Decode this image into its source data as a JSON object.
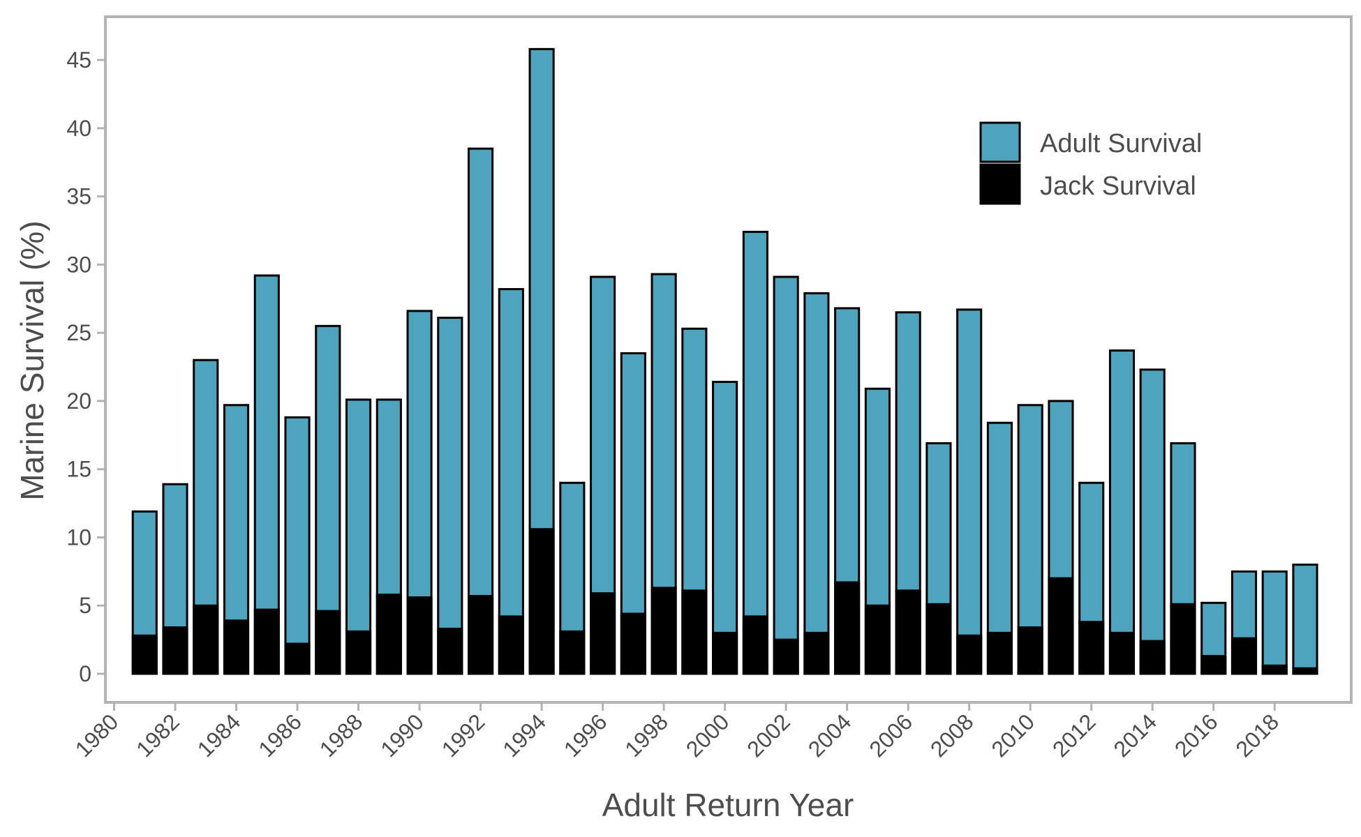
{
  "chart_data": {
    "type": "bar",
    "stacked": false,
    "overlay": true,
    "xlabel": "Adult Return Year",
    "ylabel": "Marine Survival (%)",
    "xlim": [
      1980,
      2020
    ],
    "ylim": [
      -2.5,
      48
    ],
    "x_ticks": [
      1980,
      1982,
      1984,
      1986,
      1988,
      1990,
      1992,
      1994,
      1996,
      1998,
      2000,
      2002,
      2004,
      2006,
      2008,
      2010,
      2012,
      2014,
      2016,
      2018
    ],
    "y_ticks": [
      0,
      5,
      10,
      15,
      20,
      25,
      30,
      35,
      40,
      45
    ],
    "grid": false,
    "legend_position": "top-right",
    "x": [
      1981,
      1982,
      1983,
      1984,
      1985,
      1986,
      1987,
      1988,
      1989,
      1990,
      1991,
      1992,
      1993,
      1994,
      1995,
      1996,
      1997,
      1998,
      1999,
      2000,
      2001,
      2002,
      2003,
      2004,
      2005,
      2006,
      2007,
      2008,
      2009,
      2010,
      2011,
      2012,
      2013,
      2014,
      2015,
      2016,
      2017,
      2018,
      2019
    ],
    "series": [
      {
        "name": "Adult Survival",
        "color": "#4ea3bd",
        "values": [
          11.9,
          13.9,
          23.0,
          19.7,
          29.2,
          18.8,
          25.5,
          20.1,
          20.1,
          26.6,
          26.1,
          38.5,
          28.2,
          45.8,
          14.0,
          29.1,
          23.5,
          29.3,
          25.3,
          21.4,
          32.4,
          29.1,
          27.9,
          26.8,
          20.9,
          26.5,
          16.9,
          26.7,
          18.4,
          19.7,
          20.0,
          14.0,
          23.7,
          22.3,
          16.9,
          5.2,
          7.5,
          7.5,
          8.0
        ]
      },
      {
        "name": "Jack Survival",
        "color": "#000000",
        "values": [
          2.8,
          3.4,
          5.0,
          3.9,
          4.7,
          2.2,
          4.6,
          3.1,
          5.8,
          5.6,
          3.3,
          5.7,
          4.2,
          10.6,
          3.1,
          5.9,
          4.4,
          6.3,
          6.1,
          3.0,
          4.2,
          2.5,
          3.0,
          6.7,
          5.0,
          6.1,
          5.1,
          2.8,
          3.0,
          3.4,
          7.0,
          3.8,
          3.0,
          2.4,
          5.1,
          1.3,
          2.6,
          0.6,
          0.4
        ]
      }
    ]
  }
}
